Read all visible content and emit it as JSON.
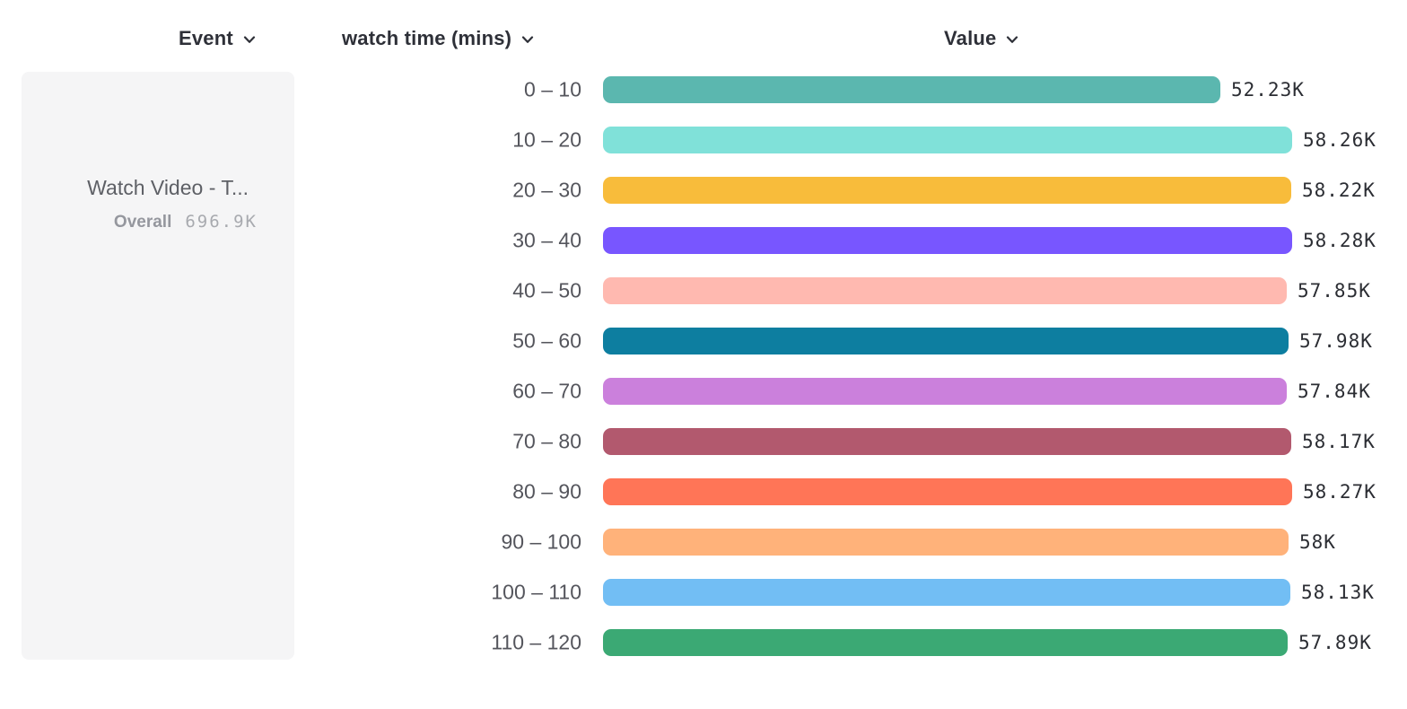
{
  "columns": {
    "event": {
      "label": "Event"
    },
    "breakdown": {
      "label": "watch time (mins)"
    },
    "value": {
      "label": "Value"
    }
  },
  "icons": {
    "header_dropdown": "chevron-down-icon"
  },
  "event_card": {
    "title": "Watch Video - T...",
    "overall_label": "Overall",
    "overall_value": "696.9K"
  },
  "colors": {
    "page_background": "#ffffff",
    "card_background": "#f5f5f6",
    "header_text": "#2e3038",
    "category_text": "#54555c",
    "value_text": "#2b2d33"
  },
  "chart_data": {
    "type": "bar",
    "orientation": "horizontal",
    "title": "",
    "xlabel": "Value",
    "ylabel": "watch time (mins)",
    "xlim": [
      0,
      58280
    ],
    "grid": false,
    "legend": "none",
    "categories": [
      "0 – 10",
      "10 – 20",
      "20 – 30",
      "30 – 40",
      "40 – 50",
      "50 – 60",
      "60 – 70",
      "70 – 80",
      "80 – 90",
      "90 – 100",
      "100 – 110",
      "110 – 120"
    ],
    "values": [
      52230,
      58260,
      58220,
      58280,
      57850,
      57980,
      57840,
      58170,
      58270,
      58000,
      58130,
      57890
    ],
    "value_labels": [
      "52.23K",
      "58.26K",
      "58.22K",
      "58.28K",
      "57.85K",
      "57.98K",
      "57.84K",
      "58.17K",
      "58.27K",
      "58K",
      "58.13K",
      "57.89K"
    ],
    "bar_colors": [
      "#5BB7AF",
      "#80E1D9",
      "#F8BC3B",
      "#7856FF",
      "#FFB9B0",
      "#0D7EA0",
      "#CB80DC",
      "#B2596E",
      "#FF7557",
      "#FFB27A",
      "#72BEF4",
      "#3BA974"
    ]
  }
}
